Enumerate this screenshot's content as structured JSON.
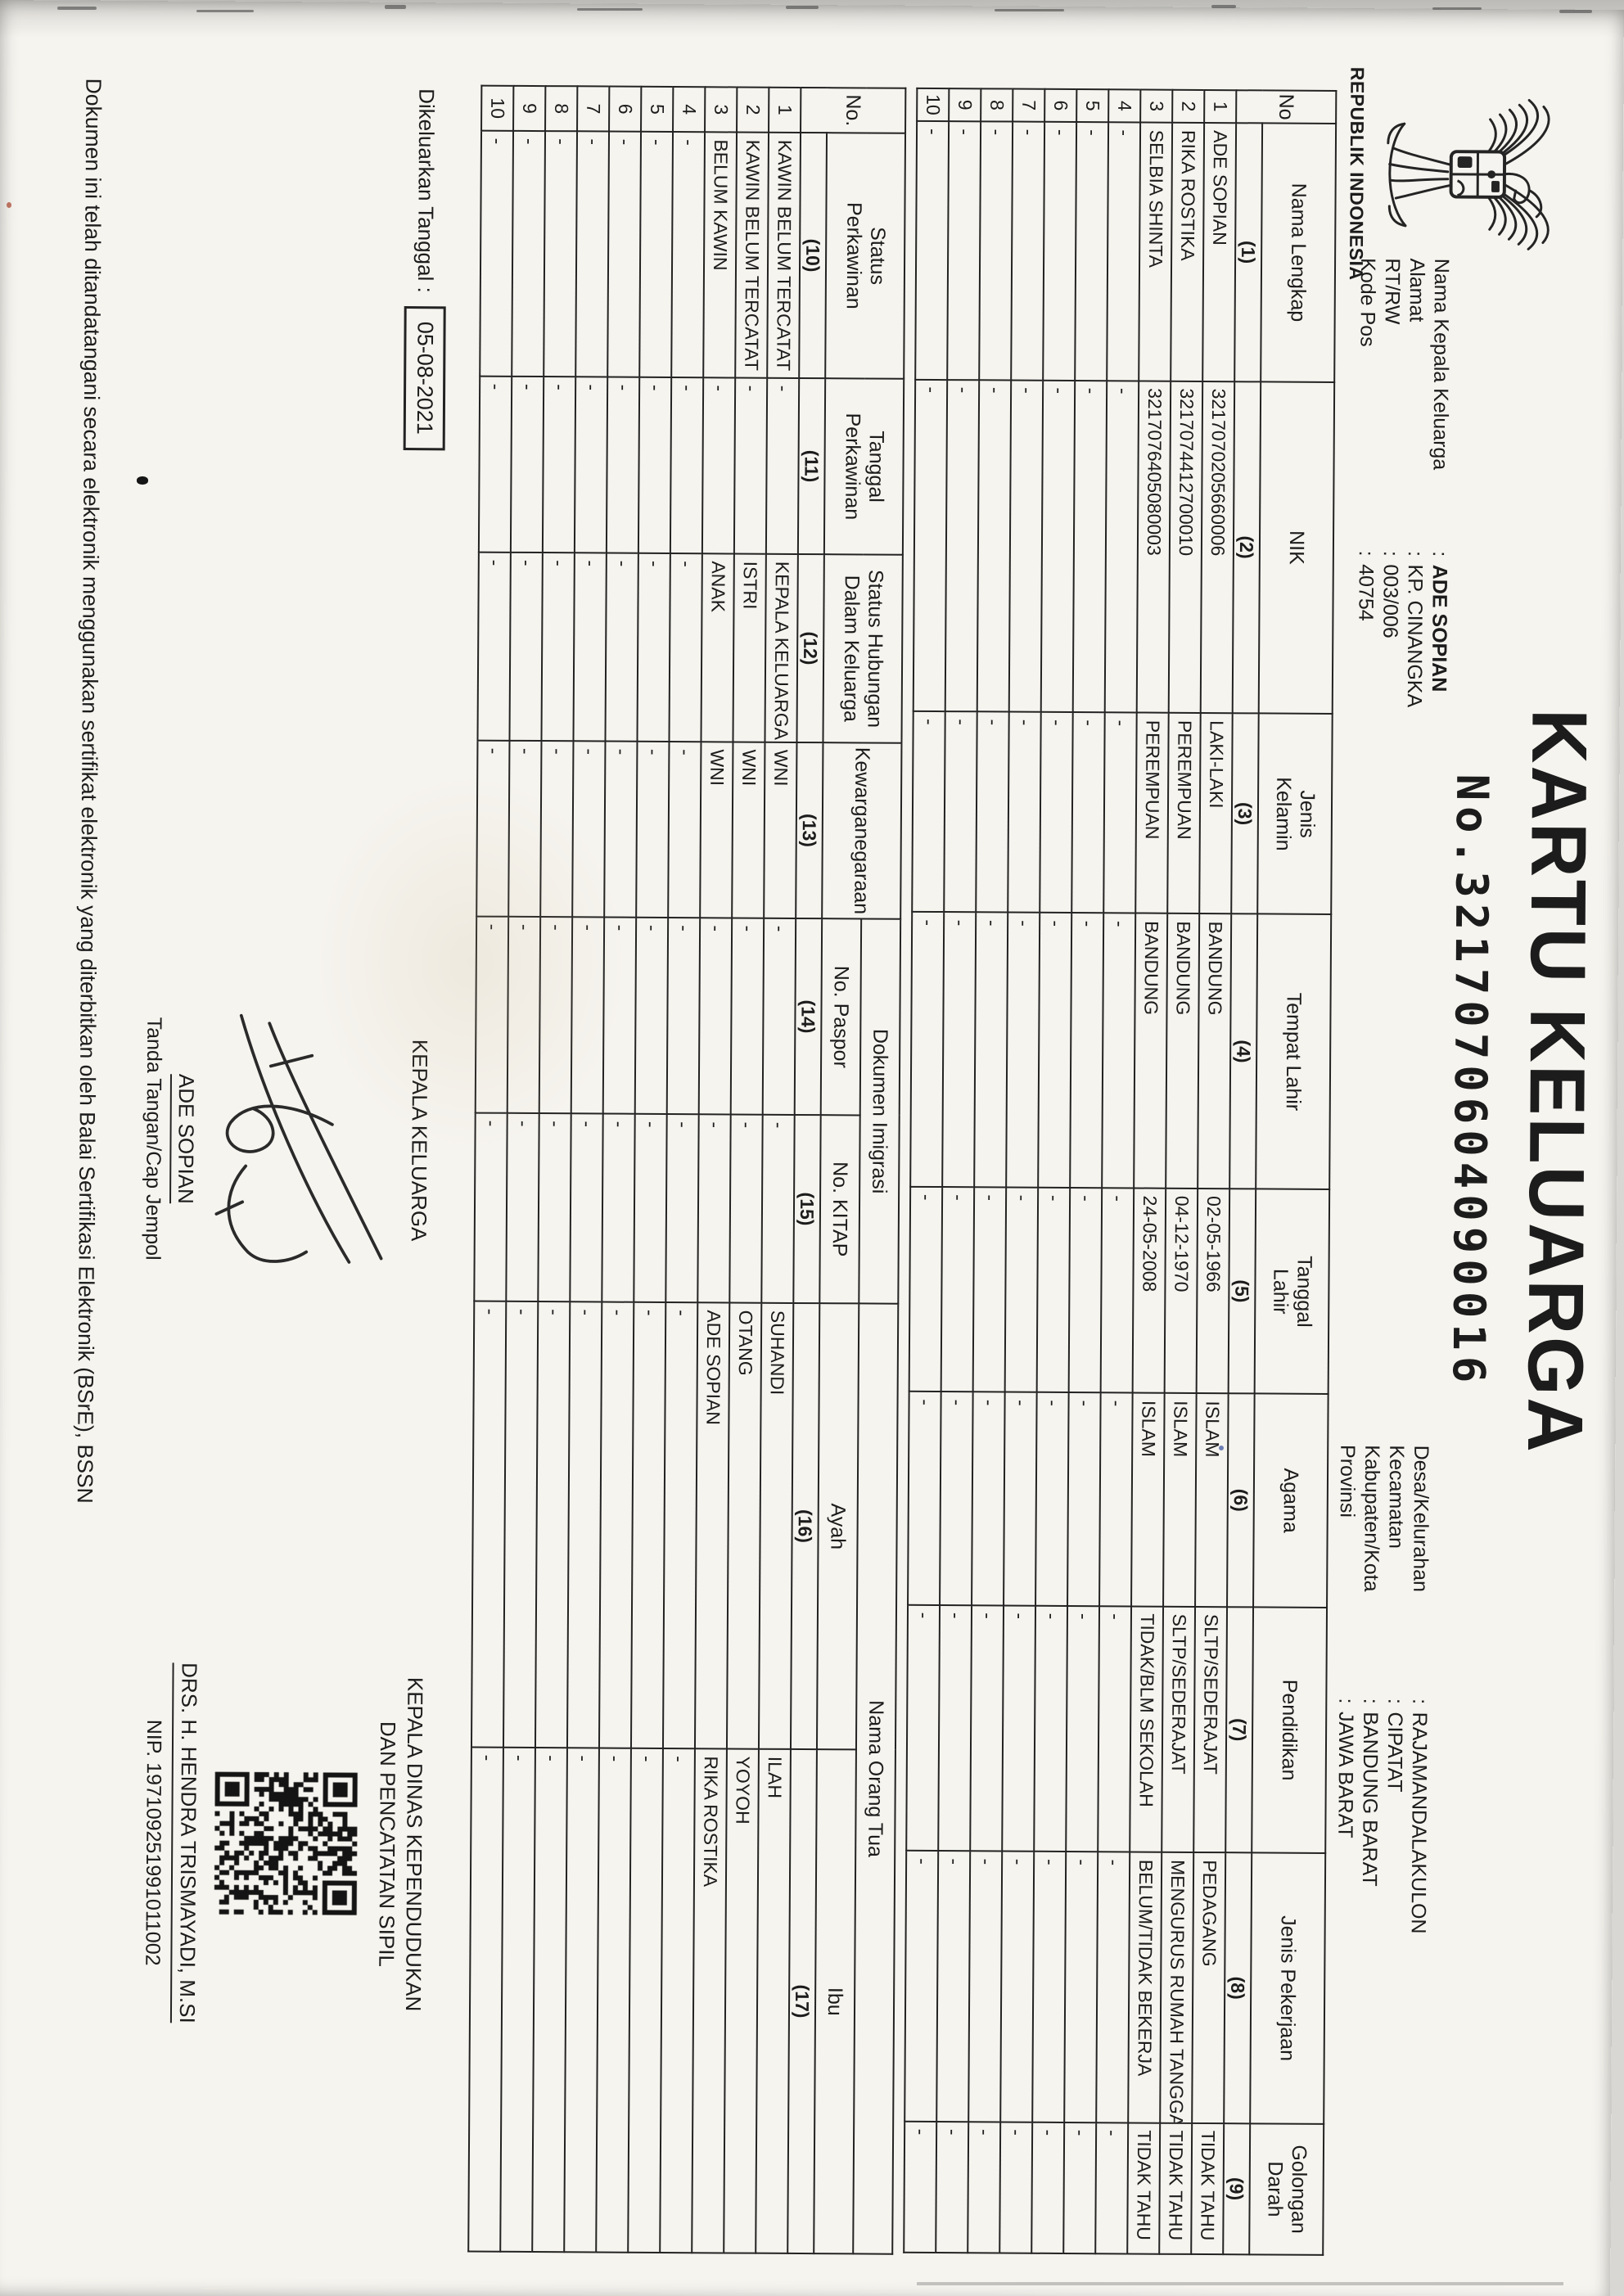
{
  "emblem": {
    "caption": "REPUBLIK INDONESIA"
  },
  "title": "KARTU KELUARGA",
  "card_number_line": "No.3217070604090016",
  "header_left": {
    "rows": [
      {
        "label": "Nama Kepala Keluarga",
        "value": "ADE SOPIAN",
        "bold": true
      },
      {
        "label": "Alamat",
        "value": "KP. CINANGKA"
      },
      {
        "label": "RT/RW",
        "value": "003/006"
      },
      {
        "label": "Kode Pos",
        "value": "40754"
      }
    ]
  },
  "header_right": {
    "rows": [
      {
        "label": "Desa/Kelurahan",
        "value": "RAJAMANDALAKULON"
      },
      {
        "label": "Kecamatan",
        "value": "CIPATAT"
      },
      {
        "label": "Kabupaten/Kota",
        "value": "BANDUNG BARAT"
      },
      {
        "label": "Provinsi",
        "value": "JAWA BARAT"
      }
    ]
  },
  "table1": {
    "no_header": "No",
    "columns": [
      {
        "key": "nama-lengkap",
        "label": "Nama Lengkap",
        "num": "(1)"
      },
      {
        "key": "nik",
        "label": "NIK",
        "num": "(2)"
      },
      {
        "key": "jenis-kelamin",
        "label": "Jenis\nKelamin",
        "num": "(3)"
      },
      {
        "key": "tempat-lahir",
        "label": "Tempat Lahir",
        "num": "(4)"
      },
      {
        "key": "tanggal-lahir",
        "label": "Tanggal\nLahir",
        "num": "(5)"
      },
      {
        "key": "agama",
        "label": "Agama",
        "num": "(6)"
      },
      {
        "key": "pendidikan",
        "label": "Pendidikan",
        "num": "(7)"
      },
      {
        "key": "jenis-pekerjaan",
        "label": "Jenis Pekerjaan",
        "num": "(8)"
      },
      {
        "key": "golongan-darah",
        "label": "Golongan\nDarah",
        "num": "(9)"
      }
    ],
    "rows": [
      {
        "no": "1",
        "cells": [
          "ADE SOPIAN",
          "3217070205660006",
          "LAKI-LAKI",
          "BANDUNG",
          "02-05-1966",
          "ISLAM",
          "SLTP/SEDERAJAT",
          "PEDAGANG",
          "TIDAK TAHU"
        ]
      },
      {
        "no": "2",
        "cells": [
          "RIKA ROSTIKA",
          "3217074412700010",
          "PEREMPUAN",
          "BANDUNG",
          "04-12-1970",
          "ISLAM",
          "SLTP/SEDERAJAT",
          "MENGURUS RUMAH TANGGA",
          "TIDAK TAHU"
        ]
      },
      {
        "no": "3",
        "cells": [
          "SELBIA SHINTA",
          "3217076405080003",
          "PEREMPUAN",
          "BANDUNG",
          "24-05-2008",
          "ISLAM",
          "TIDAK/BLM SEKOLAH",
          "BELUM/TIDAK BEKERJA",
          "TIDAK TAHU"
        ]
      },
      {
        "no": "4",
        "cells": [
          "-",
          "-",
          "-",
          "-",
          "-",
          "-",
          "-",
          "-",
          "-"
        ]
      },
      {
        "no": "5",
        "cells": [
          "-",
          "-",
          "-",
          "-",
          "-",
          "-",
          "-",
          "-",
          "-"
        ]
      },
      {
        "no": "6",
        "cells": [
          "-",
          "-",
          "-",
          "-",
          "-",
          "-",
          "-",
          "-",
          "-"
        ]
      },
      {
        "no": "7",
        "cells": [
          "-",
          "-",
          "-",
          "-",
          "-",
          "-",
          "-",
          "-",
          "-"
        ]
      },
      {
        "no": "8",
        "cells": [
          "-",
          "-",
          "-",
          "-",
          "-",
          "-",
          "-",
          "-",
          "-"
        ]
      },
      {
        "no": "9",
        "cells": [
          "-",
          "-",
          "-",
          "-",
          "-",
          "-",
          "-",
          "-",
          "-"
        ]
      },
      {
        "no": "10",
        "cells": [
          "-",
          "-",
          "-",
          "-",
          "-",
          "-",
          "-",
          "-",
          "-"
        ]
      }
    ]
  },
  "table2": {
    "no_header": "No.",
    "simple_columns": [
      {
        "key": "status-perkawinan",
        "label": "Status\nPerkawinan",
        "num": "(10)"
      },
      {
        "key": "tanggal-perkawinan",
        "label": "Tanggal\nPerkawinan",
        "num": "(11)"
      },
      {
        "key": "status-hubungan",
        "label": "Status Hubungan\nDalam Keluarga",
        "num": "(12)"
      },
      {
        "key": "kewarganegaraan",
        "label": "Kewarganegaraan",
        "num": "(13)"
      }
    ],
    "groups": [
      {
        "label": "Dokumen Imigrasi",
        "children": [
          {
            "key": "no-paspor",
            "label": "No. Paspor",
            "num": "(14)"
          },
          {
            "key": "no-kitap",
            "label": "No. KITAP",
            "num": "(15)"
          }
        ]
      },
      {
        "label": "Nama Orang Tua",
        "children": [
          {
            "key": "ayah",
            "label": "Ayah",
            "num": "(16)"
          },
          {
            "key": "ibu",
            "label": "Ibu",
            "num": "(17)"
          }
        ]
      }
    ],
    "rows": [
      {
        "no": "1",
        "cells": [
          "KAWIN BELUM TERCATAT",
          "-",
          "KEPALA KELUARGA",
          "WNI",
          "-",
          "-",
          "SUHANDI",
          "ILAH"
        ]
      },
      {
        "no": "2",
        "cells": [
          "KAWIN BELUM TERCATAT",
          "-",
          "ISTRI",
          "WNI",
          "-",
          "-",
          "OTANG",
          "YOYOH"
        ]
      },
      {
        "no": "3",
        "cells": [
          "BELUM KAWIN",
          "-",
          "ANAK",
          "WNI",
          "-",
          "-",
          "ADE SOPIAN",
          "RIKA ROSTIKA"
        ]
      },
      {
        "no": "4",
        "cells": [
          "-",
          "-",
          "-",
          "-",
          "-",
          "-",
          "-",
          "-"
        ]
      },
      {
        "no": "5",
        "cells": [
          "-",
          "-",
          "-",
          "-",
          "-",
          "-",
          "-",
          "-"
        ]
      },
      {
        "no": "6",
        "cells": [
          "-",
          "-",
          "-",
          "-",
          "-",
          "-",
          "-",
          "-"
        ]
      },
      {
        "no": "7",
        "cells": [
          "-",
          "-",
          "-",
          "-",
          "-",
          "-",
          "-",
          "-"
        ]
      },
      {
        "no": "8",
        "cells": [
          "-",
          "-",
          "-",
          "-",
          "-",
          "-",
          "-",
          "-"
        ]
      },
      {
        "no": "9",
        "cells": [
          "-",
          "-",
          "-",
          "-",
          "-",
          "-",
          "-",
          "-"
        ]
      },
      {
        "no": "10",
        "cells": [
          "-",
          "-",
          "-",
          "-",
          "-",
          "-",
          "-",
          "-"
        ]
      }
    ]
  },
  "footer": {
    "issued_label": "Dikeluarkan Tanggal :",
    "issued_date": "05-08-2021",
    "family_head_heading": "KEPALA KELUARGA",
    "family_head_name": "ADE SOPIAN",
    "family_head_caption": "Tanda Tangan/Cap Jempol",
    "official_heading_line1": "KEPALA DINAS KEPENDUDUKAN",
    "official_heading_line2": "DAN PENCATATAN SIPIL",
    "official_name": "DRS. H. HENDRA TRISMAYADI, M.SI",
    "official_nip": "NIP. 197109251991011002"
  },
  "disclaimer": "Dokumen ini telah ditandatangani secara elektronik menggunakan sertifikat elektronik yang diterbitkan oleh Balai Sertifikasi Elektronik (BSrE), BSSN",
  "colors": {
    "ink": "#1c1c1c",
    "paper": "#f6f4ef"
  }
}
